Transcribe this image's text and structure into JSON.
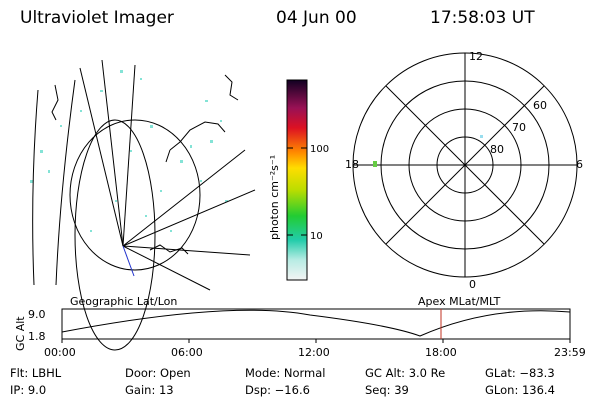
{
  "header": {
    "title": "Ultraviolet Imager",
    "date": "04 Jun 00",
    "time": "17:58:03 UT"
  },
  "colorbar": {
    "unit_label": "photon cm⁻²s⁻¹",
    "ticks": [
      "100",
      "10"
    ]
  },
  "polar_plot": {
    "mlt_labels": [
      "12",
      "18",
      "6",
      "0"
    ],
    "lat_labels": [
      "60",
      "70",
      "80"
    ]
  },
  "altitude_strip": {
    "axis_label": "GC Alt",
    "y_ticks": [
      "9.0",
      "1.8"
    ],
    "left_title": "Geographic Lat/Lon",
    "right_title": "Apex MLat/MLT",
    "x_ticks": [
      "00:00",
      "06:00",
      "12:00",
      "18:00",
      "23:59"
    ],
    "marker_color": "#c03020"
  },
  "info": {
    "flt": "Flt: LBHL",
    "ip": "IP:  9.0",
    "door": "Door: Open",
    "gain": "Gain: 13",
    "mode": "Mode: Normal",
    "dsp": "Dsp:  −16.6",
    "gcalt": "GC Alt: 3.0 Re",
    "seq": "Seq: 39",
    "glat": "GLat: −83.3",
    "glon": "GLon: 136.4"
  }
}
